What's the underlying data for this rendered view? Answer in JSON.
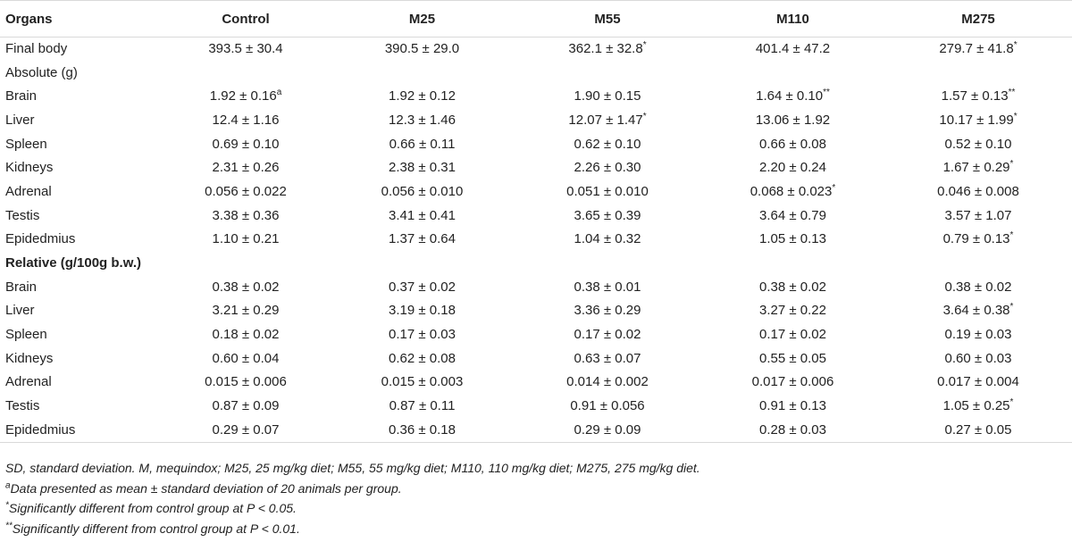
{
  "table": {
    "headers": [
      "Organs",
      "Control",
      "M25",
      "M55",
      "M110",
      "M275"
    ],
    "rows": [
      {
        "label": "Final body",
        "section": false,
        "cells": [
          {
            "v": "393.5 ± 30.4",
            "m": ""
          },
          {
            "v": "390.5 ± 29.0",
            "m": ""
          },
          {
            "v": "362.1 ± 32.8",
            "m": "*"
          },
          {
            "v": "401.4 ± 47.2",
            "m": ""
          },
          {
            "v": "279.7 ± 41.8",
            "m": "*"
          }
        ]
      },
      {
        "label": "Absolute (g)",
        "section": false,
        "cells": [
          {
            "v": "",
            "m": ""
          },
          {
            "v": "",
            "m": ""
          },
          {
            "v": "",
            "m": ""
          },
          {
            "v": "",
            "m": ""
          },
          {
            "v": "",
            "m": ""
          }
        ]
      },
      {
        "label": "Brain",
        "section": false,
        "cells": [
          {
            "v": "1.92 ± 0.16",
            "m": "a"
          },
          {
            "v": "1.92 ± 0.12",
            "m": ""
          },
          {
            "v": "1.90 ± 0.15",
            "m": ""
          },
          {
            "v": "1.64 ± 0.10",
            "m": "**"
          },
          {
            "v": "1.57 ± 0.13",
            "m": "**"
          }
        ]
      },
      {
        "label": "Liver",
        "section": false,
        "cells": [
          {
            "v": "12.4 ± 1.16",
            "m": ""
          },
          {
            "v": "12.3 ± 1.46",
            "m": ""
          },
          {
            "v": "12.07 ± 1.47",
            "m": "*"
          },
          {
            "v": "13.06 ± 1.92",
            "m": ""
          },
          {
            "v": "10.17 ± 1.99",
            "m": "*"
          }
        ]
      },
      {
        "label": "Spleen",
        "section": false,
        "cells": [
          {
            "v": "0.69 ± 0.10",
            "m": ""
          },
          {
            "v": "0.66 ± 0.11",
            "m": ""
          },
          {
            "v": "0.62 ± 0.10",
            "m": ""
          },
          {
            "v": "0.66 ± 0.08",
            "m": ""
          },
          {
            "v": "0.52 ± 0.10",
            "m": ""
          }
        ]
      },
      {
        "label": "Kidneys",
        "section": false,
        "cells": [
          {
            "v": "2.31 ± 0.26",
            "m": ""
          },
          {
            "v": "2.38 ± 0.31",
            "m": ""
          },
          {
            "v": "2.26 ± 0.30",
            "m": ""
          },
          {
            "v": "2.20 ± 0.24",
            "m": ""
          },
          {
            "v": "1.67 ± 0.29",
            "m": "*"
          }
        ]
      },
      {
        "label": "Adrenal",
        "section": false,
        "cells": [
          {
            "v": "0.056 ± 0.022",
            "m": ""
          },
          {
            "v": "0.056 ± 0.010",
            "m": ""
          },
          {
            "v": "0.051 ± 0.010",
            "m": ""
          },
          {
            "v": "0.068 ± 0.023",
            "m": "*"
          },
          {
            "v": "0.046 ± 0.008",
            "m": ""
          }
        ]
      },
      {
        "label": "Testis",
        "section": false,
        "cells": [
          {
            "v": "3.38 ± 0.36",
            "m": ""
          },
          {
            "v": "3.41 ± 0.41",
            "m": ""
          },
          {
            "v": "3.65 ± 0.39",
            "m": ""
          },
          {
            "v": "3.64 ± 0.79",
            "m": ""
          },
          {
            "v": "3.57 ± 1.07",
            "m": ""
          }
        ]
      },
      {
        "label": "Epidedmius",
        "section": false,
        "cells": [
          {
            "v": "1.10 ± 0.21",
            "m": ""
          },
          {
            "v": "1.37 ± 0.64",
            "m": ""
          },
          {
            "v": "1.04 ± 0.32",
            "m": ""
          },
          {
            "v": "1.05 ± 0.13",
            "m": ""
          },
          {
            "v": "0.79 ± 0.13",
            "m": "*"
          }
        ]
      },
      {
        "label": "Relative (g/100g b.w.)",
        "section": true,
        "cells": [
          {
            "v": "",
            "m": ""
          },
          {
            "v": "",
            "m": ""
          },
          {
            "v": "",
            "m": ""
          },
          {
            "v": "",
            "m": ""
          },
          {
            "v": "",
            "m": ""
          }
        ]
      },
      {
        "label": "Brain",
        "section": false,
        "cells": [
          {
            "v": "0.38 ± 0.02",
            "m": ""
          },
          {
            "v": "0.37 ± 0.02",
            "m": ""
          },
          {
            "v": "0.38 ± 0.01",
            "m": ""
          },
          {
            "v": "0.38 ± 0.02",
            "m": ""
          },
          {
            "v": "0.38 ± 0.02",
            "m": ""
          }
        ]
      },
      {
        "label": "Liver",
        "section": false,
        "cells": [
          {
            "v": "3.21 ± 0.29",
            "m": ""
          },
          {
            "v": "3.19 ± 0.18",
            "m": ""
          },
          {
            "v": "3.36 ± 0.29",
            "m": ""
          },
          {
            "v": "3.27 ± 0.22",
            "m": ""
          },
          {
            "v": "3.64 ± 0.38",
            "m": "*"
          }
        ]
      },
      {
        "label": "Spleen",
        "section": false,
        "cells": [
          {
            "v": "0.18 ± 0.02",
            "m": ""
          },
          {
            "v": "0.17 ± 0.03",
            "m": ""
          },
          {
            "v": "0.17 ± 0.02",
            "m": ""
          },
          {
            "v": "0.17 ± 0.02",
            "m": ""
          },
          {
            "v": "0.19 ± 0.03",
            "m": ""
          }
        ]
      },
      {
        "label": "Kidneys",
        "section": false,
        "cells": [
          {
            "v": "0.60 ± 0.04",
            "m": ""
          },
          {
            "v": "0.62 ± 0.08",
            "m": ""
          },
          {
            "v": "0.63 ± 0.07",
            "m": ""
          },
          {
            "v": "0.55 ± 0.05",
            "m": ""
          },
          {
            "v": "0.60 ± 0.03",
            "m": ""
          }
        ]
      },
      {
        "label": "Adrenal",
        "section": false,
        "cells": [
          {
            "v": "0.015 ± 0.006",
            "m": ""
          },
          {
            "v": "0.015 ± 0.003",
            "m": ""
          },
          {
            "v": "0.014 ± 0.002",
            "m": ""
          },
          {
            "v": "0.017 ± 0.006",
            "m": ""
          },
          {
            "v": "0.017 ± 0.004",
            "m": ""
          }
        ]
      },
      {
        "label": "Testis",
        "section": false,
        "cells": [
          {
            "v": "0.87 ± 0.09",
            "m": ""
          },
          {
            "v": "0.87 ± 0.11",
            "m": ""
          },
          {
            "v": "0.91 ± 0.056",
            "m": ""
          },
          {
            "v": "0.91 ± 0.13",
            "m": ""
          },
          {
            "v": "1.05 ± 0.25",
            "m": "*"
          }
        ]
      },
      {
        "label": "Epidedmius",
        "section": false,
        "cells": [
          {
            "v": "0.29 ± 0.07",
            "m": ""
          },
          {
            "v": "0.36 ± 0.18",
            "m": ""
          },
          {
            "v": "0.29 ± 0.09",
            "m": ""
          },
          {
            "v": "0.28 ± 0.03",
            "m": ""
          },
          {
            "v": "0.27 ± 0.05",
            "m": ""
          }
        ]
      }
    ]
  },
  "footnotes": {
    "abbrev": "SD, standard deviation. M, mequindox; M25, 25 mg/kg diet; M55, 55 mg/kg diet; M110, 110 mg/kg diet; M275, 275 mg/kg diet.",
    "note_a_mark": "a",
    "note_a": "Data presented as mean ± standard deviation of 20 animals per group.",
    "note_star_mark": "*",
    "note_star": "Significantly different from control group at P < 0.05.",
    "note_dstar_mark": "**",
    "note_dstar": "Significantly different from control group at P < 0.01."
  }
}
